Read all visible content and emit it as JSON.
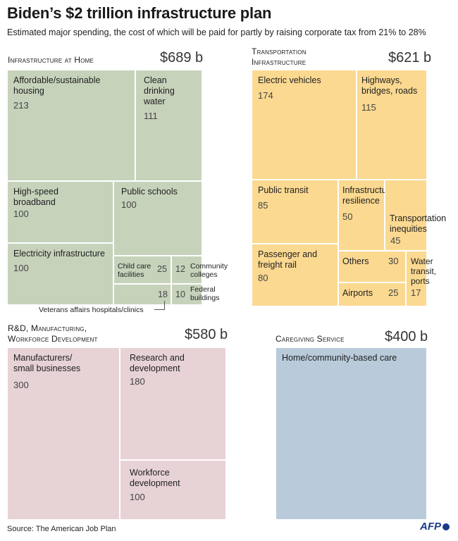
{
  "title": "Biden’s $2 trillion infrastructure plan",
  "subtitle": "Estimated major spending, the cost of which will be paid for partly by raising corporate tax from 21% to 28%",
  "source": "Source: The American Job Plan",
  "logo": "AFP",
  "sections": {
    "home": {
      "title": "Infrastructure at Home",
      "total": "$689 b"
    },
    "transport": {
      "title_line1": "Transportation",
      "title_line2": "Infrastructure",
      "total": "$621 b"
    },
    "rnd": {
      "title_line1": "R&D, Manufacturing,",
      "title_line2": "Workforce Development",
      "total": "$580 b"
    },
    "care": {
      "title": "Caregiving Service",
      "total": "$400 b"
    }
  },
  "chart_data": {
    "type": "treemap",
    "title": "Biden’s $2 trillion infrastructure plan",
    "unit": "billion USD",
    "groups": [
      {
        "name": "Infrastructure at Home",
        "total": 689,
        "items": [
          {
            "label": "Affordable/sustainable housing",
            "value": 213
          },
          {
            "label": "Clean drinking water",
            "value": 111
          },
          {
            "label": "High-speed broadband",
            "value": 100
          },
          {
            "label": "Public schools",
            "value": 100
          },
          {
            "label": "Electricity infrastructure",
            "value": 100
          },
          {
            "label": "Child care facilities",
            "value": 25
          },
          {
            "label": "Community colleges",
            "value": 12
          },
          {
            "label": "Veterans affairs hospitals/clinics",
            "value": 18
          },
          {
            "label": "Federal buildings",
            "value": 10
          }
        ]
      },
      {
        "name": "Transportation Infrastructure",
        "total": 621,
        "items": [
          {
            "label": "Electric vehicles",
            "value": 174
          },
          {
            "label": "Highways, bridges, roads",
            "value": 115
          },
          {
            "label": "Public transit",
            "value": 85
          },
          {
            "label": "Infrastructure resilience",
            "value": 50
          },
          {
            "label": "Transportation inequities",
            "value": 45
          },
          {
            "label": "Passenger and freight rail",
            "value": 80
          },
          {
            "label": "Others",
            "value": 30
          },
          {
            "label": "Airports",
            "value": 25
          },
          {
            "label": "Water transit, ports",
            "value": 17
          }
        ]
      },
      {
        "name": "R&D, Manufacturing, Workforce Development",
        "total": 580,
        "items": [
          {
            "label": "Manufacturers/ small businesses",
            "value": 300
          },
          {
            "label": "Research and development",
            "value": 180
          },
          {
            "label": "Workforce development",
            "value": 100
          }
        ]
      },
      {
        "name": "Caregiving Service",
        "total": 400,
        "items": [
          {
            "label": "Home/community-based care",
            "value": 400
          }
        ]
      }
    ]
  },
  "home": {
    "housing": {
      "label": "Affordable/sustainable housing",
      "value": "213"
    },
    "water": {
      "label": "Clean drinking water",
      "value": "111"
    },
    "broadband": {
      "label": "High-speed broadband",
      "value": "100"
    },
    "schools": {
      "label": "Public schools",
      "value": "100"
    },
    "electricity": {
      "label": "Electricity infrastructure",
      "value": "100"
    },
    "childcare": {
      "label": "Child care facilities",
      "value": "25"
    },
    "colleges": {
      "label": "Community colleges",
      "value": "12"
    },
    "veterans": {
      "label": "Veterans affairs hospitals/clinics",
      "value": "18"
    },
    "federal": {
      "label": "Federal buildings",
      "value": "10"
    }
  },
  "transport": {
    "ev": {
      "label": "Electric vehicles",
      "value": "174"
    },
    "highways": {
      "label": "Highways, bridges, roads",
      "value": "115"
    },
    "transit": {
      "label": "Public transit",
      "value": "85"
    },
    "resilience": {
      "label": "Infrastructure resilience",
      "value": "50"
    },
    "inequities": {
      "label": "Transportation inequities",
      "value": "45"
    },
    "rail": {
      "label": "Passenger and freight rail",
      "value": "80"
    },
    "others": {
      "label": "Others",
      "value": "30"
    },
    "airports": {
      "label": "Airports",
      "value": "25"
    },
    "ports": {
      "label": "Water transit, ports",
      "value": "17"
    }
  },
  "rnd": {
    "manufacturers": {
      "label": "Manufacturers/ small businesses",
      "value": "300"
    },
    "research": {
      "label": "Research and development",
      "value": "180"
    },
    "workforce": {
      "label": "Workforce development",
      "value": "100"
    }
  },
  "care": {
    "home": {
      "label": "Home/community-based care"
    }
  },
  "colors": {
    "home": "#c7d2bb",
    "transport": "#fbd991",
    "rnd": "#e7d2d6",
    "care": "#b9cbda"
  }
}
